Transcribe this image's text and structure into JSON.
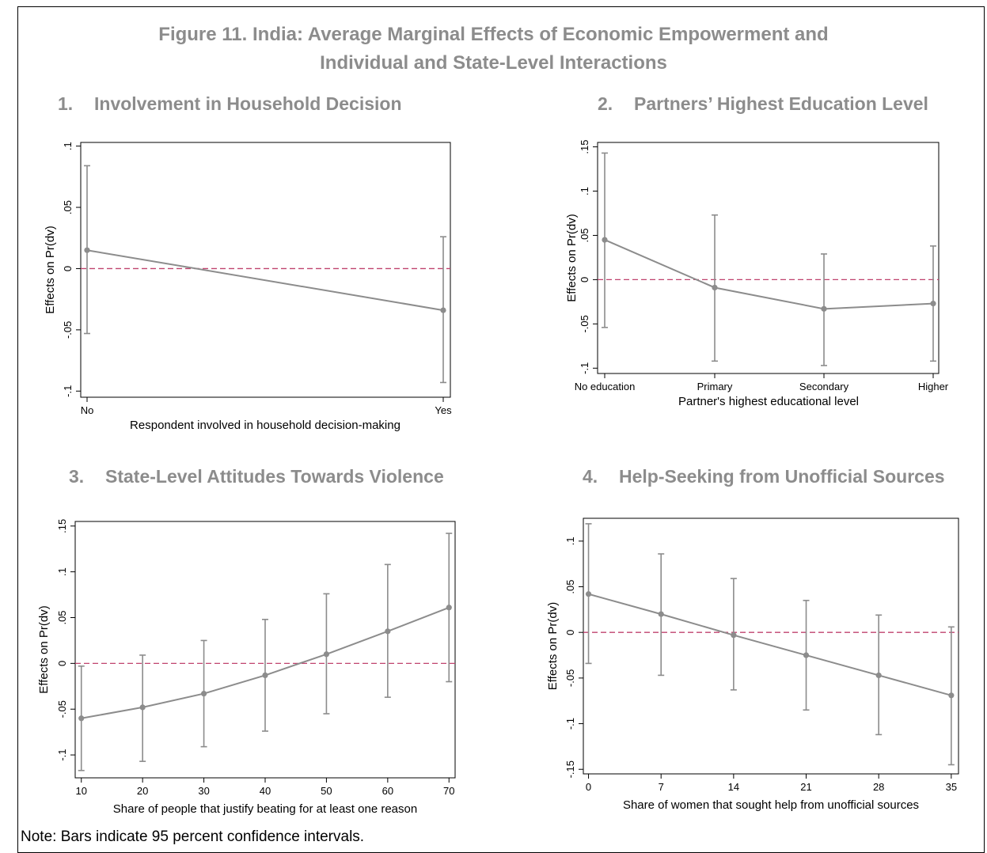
{
  "title_line1": "Figure 11. India: Average Marginal Effects of Economic Empowerment and",
  "title_line2": "Individual and State-Level Interactions",
  "note": "Note: Bars indicate 95 percent confidence intervals.",
  "colors": {
    "line": "#8c8c8c",
    "zero_line": "#c0436f",
    "title": "#8c8c8c",
    "axis": "#000000"
  },
  "panels": [
    {
      "number": "1.",
      "title": "Involvement in Household Decision"
    },
    {
      "number": "2.",
      "title": "Partners’ Highest Education Level"
    },
    {
      "number": "3.",
      "title": "State-Level Attitudes Towards Violence"
    },
    {
      "number": "4.",
      "title": "Help-Seeking from Unofficial Sources"
    }
  ],
  "chart_data": [
    {
      "type": "line",
      "xlabel": "Respondent involved in household decision-making",
      "ylabel": "Effects on Pr(dv)",
      "x_categories": [
        "No",
        "Yes"
      ],
      "y_ticks": [
        -0.1,
        -0.05,
        0,
        0.05,
        0.1
      ],
      "y_tick_labels": [
        "-.1",
        "-.05",
        "0",
        ".05",
        ".1"
      ],
      "ylim": [
        -0.105,
        0.103
      ],
      "values": [
        0.015,
        -0.034
      ],
      "ci_low": [
        -0.053,
        -0.093
      ],
      "ci_high": [
        0.084,
        0.026
      ],
      "reference_line": 0
    },
    {
      "type": "line",
      "xlabel": "Partner's highest educational level",
      "ylabel": "Effects on Pr(dv)",
      "x_categories": [
        "No education",
        "Primary",
        "Secondary",
        "Higher"
      ],
      "y_ticks": [
        -0.1,
        -0.05,
        0,
        0.05,
        0.1,
        0.15
      ],
      "y_tick_labels": [
        "-.1",
        "-.05",
        "0",
        ".05",
        ".1",
        ".15"
      ],
      "ylim": [
        -0.106,
        0.155
      ],
      "values": [
        0.045,
        -0.009,
        -0.033,
        -0.027
      ],
      "ci_low": [
        -0.054,
        -0.092,
        -0.097,
        -0.092
      ],
      "ci_high": [
        0.143,
        0.073,
        0.029,
        0.038
      ],
      "reference_line": 0
    },
    {
      "type": "line",
      "xlabel": "Share of people that justify beating for at least one reason",
      "ylabel": "Effects on Pr(dv)",
      "x": [
        10,
        20,
        30,
        40,
        50,
        60,
        70
      ],
      "xlim": [
        9,
        71
      ],
      "y_ticks": [
        -0.1,
        -0.05,
        0,
        0.05,
        0.1,
        0.15
      ],
      "y_tick_labels": [
        "-.1",
        "-.05",
        "0",
        ".05",
        ".1",
        ".15"
      ],
      "ylim": [
        -0.125,
        0.155
      ],
      "values": [
        -0.06,
        -0.048,
        -0.033,
        -0.013,
        0.01,
        0.035,
        0.061
      ],
      "ci_low": [
        -0.117,
        -0.107,
        -0.091,
        -0.074,
        -0.055,
        -0.037,
        -0.02
      ],
      "ci_high": [
        -0.003,
        0.009,
        0.025,
        0.048,
        0.076,
        0.108,
        0.142
      ],
      "reference_line": 0
    },
    {
      "type": "line",
      "xlabel": "Share of women that sought help from unofficial sources",
      "ylabel": "Effects on Pr(dv)",
      "x": [
        0,
        7,
        14,
        21,
        28,
        35
      ],
      "xlim": [
        -0.5,
        35.7
      ],
      "y_ticks": [
        -0.15,
        -0.1,
        -0.05,
        0,
        0.05,
        0.1
      ],
      "y_tick_labels": [
        "-.15",
        "-.1",
        "-.05",
        "0",
        ".05",
        ".1"
      ],
      "ylim": [
        -0.155,
        0.125
      ],
      "values": [
        0.042,
        0.02,
        -0.003,
        -0.025,
        -0.047,
        -0.069
      ],
      "ci_low": [
        -0.034,
        -0.047,
        -0.063,
        -0.085,
        -0.112,
        -0.145
      ],
      "ci_high": [
        0.119,
        0.086,
        0.059,
        0.035,
        0.019,
        0.006
      ],
      "reference_line": 0
    }
  ]
}
